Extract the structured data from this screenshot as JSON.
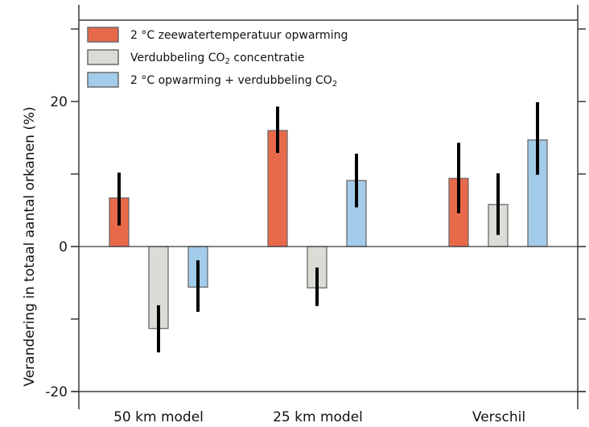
{
  "chart_data": {
    "type": "bar",
    "title": "",
    "xlabel": "",
    "ylabel": "Verandering in totaal aantal orkanen (%)",
    "ylim": [
      -20,
      30
    ],
    "yticks_labeled": [
      20,
      0,
      -20
    ],
    "yticks_labels": [
      "20",
      "0",
      "-20"
    ],
    "yticks_minor": [
      30,
      10,
      -10
    ],
    "categories": [
      "50 km model",
      "25 km model",
      "Verschil"
    ],
    "legend_position": "top-left",
    "series": [
      {
        "name": "2 °C zeewatertemperatuur opwarming",
        "legend_main": "2 °C zeewatertemperatuur opwarming",
        "legend_sub": "",
        "legend_tail": "",
        "color": "#e8694a",
        "values": [
          6.7,
          16.0,
          9.4
        ],
        "err_low": [
          2.9,
          12.9,
          4.6
        ],
        "err_high": [
          10.2,
          19.3,
          14.3
        ]
      },
      {
        "name": "Verdubbeling CO2 concentratie",
        "legend_main": "Verdubbeling CO",
        "legend_sub": "2",
        "legend_tail": " concentratie",
        "color": "#dcdbd5",
        "values": [
          -11.3,
          -5.7,
          5.8
        ],
        "err_low": [
          -14.6,
          -8.2,
          1.6
        ],
        "err_high": [
          -8.1,
          -2.9,
          10.1
        ]
      },
      {
        "name": "2 °C opwarming + verdubbeling CO2",
        "legend_main": "2 °C opwarming + verdubbeling CO",
        "legend_sub": "2",
        "legend_tail": "",
        "color": "#a3cbea",
        "values": [
          -5.6,
          9.1,
          14.7
        ],
        "err_low": [
          -9.0,
          5.4,
          9.9
        ],
        "err_high": [
          -1.9,
          12.8,
          19.9
        ]
      }
    ]
  },
  "colors": {
    "axis": "#3a3a3a",
    "bar_border": "#6b6b6b",
    "error_bar": "#000000"
  }
}
